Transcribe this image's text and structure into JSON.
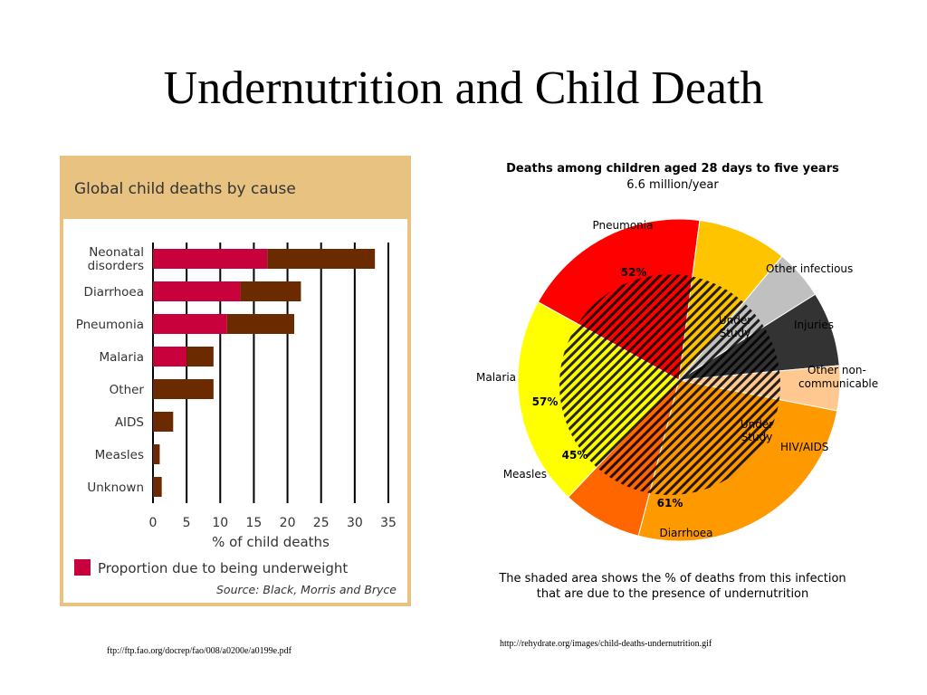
{
  "slide": {
    "title": "Undernutrition and Child Death",
    "source_left": "ftp://ftp.fao.org/docrep/fao/008/a0200e/a0199e.pdf",
    "source_right": "http://rehydrate.org/images/child-deaths-undernutrition.gif"
  },
  "chart_data": [
    {
      "type": "bar",
      "orientation": "horizontal",
      "stacked": true,
      "title": "Global child deaths by cause",
      "categories": [
        "Neonatal disorders",
        "Diarrhoea",
        "Pneumonia",
        "Malaria",
        "Other",
        "AIDS",
        "Measles",
        "Unknown"
      ],
      "series": [
        {
          "name": "Proportion due to being underweight",
          "color": "#c8003c",
          "values": [
            17,
            13,
            11,
            5,
            0,
            0,
            0,
            0
          ]
        },
        {
          "color": "#6b2a00",
          "values": [
            16,
            9,
            10,
            4,
            9,
            3,
            1,
            1.3
          ]
        }
      ],
      "xlabel": "% of child deaths",
      "xticks": [
        0,
        5,
        10,
        15,
        20,
        25,
        30,
        35
      ],
      "xlim": [
        0,
        35
      ],
      "grid": true,
      "legend_position": "bottom",
      "legend_label": "Proportion due to being underweight",
      "source": "Source: Black, Morris and Bryce",
      "colors": {
        "header": "#e8c280",
        "border": "#e8c280",
        "plot_bg": "#ffffff"
      }
    },
    {
      "type": "pie",
      "title": "Deaths among children aged 28 days to five years",
      "subtitle": "6.6 million/year",
      "slices": [
        {
          "label": "Pneumonia",
          "value": 19,
          "color": "#ff0000",
          "shaded_label": "52%"
        },
        {
          "label": "Other infectious",
          "value": 9,
          "color": "#ffc400",
          "inner_label": "Under Study"
        },
        {
          "label": "Injuries",
          "value": 5,
          "color": "#c0c0c0"
        },
        {
          "label": "Other non-communicable",
          "value": 7.5,
          "color": "#333333"
        },
        {
          "label": "HIV/AIDS",
          "value": 4.5,
          "color": "#ffc890",
          "inner_label": "Under Study"
        },
        {
          "label": "Diarrhoea",
          "value": 26,
          "color": "#ff9900",
          "shaded_label": "61%"
        },
        {
          "label": "Measles",
          "value": 8,
          "color": "#ff6600",
          "shaded_label": "45%"
        },
        {
          "label": "Malaria",
          "value": 21,
          "color": "#ffff00",
          "shaded_label": "57%"
        }
      ],
      "caption": "The shaded area shows the % of deaths from this infection that are due to the presence of undernutrition"
    }
  ]
}
